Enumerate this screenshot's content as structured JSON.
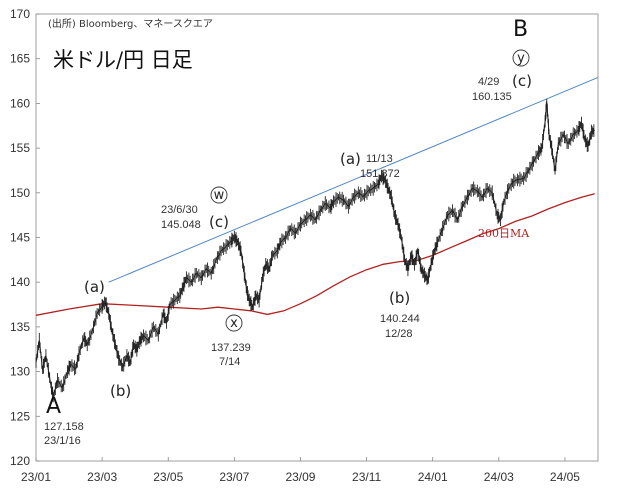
{
  "chart_data": {
    "type": "line",
    "source": "(出所) Bloomberg、マネースクエア",
    "title": "米ドル/円 日足",
    "ylim": [
      120,
      170
    ],
    "yticks": [
      120,
      125,
      130,
      135,
      140,
      145,
      150,
      155,
      160,
      165,
      170
    ],
    "xticks": [
      "23/01",
      "23/03",
      "23/05",
      "23/07",
      "23/09",
      "23/11",
      "24/01",
      "24/03",
      "24/05"
    ],
    "x_range_months": [
      0,
      17
    ],
    "series": [
      {
        "name": "",
        "color": "#222222",
        "points": [
          [
            0.0,
            131.0
          ],
          [
            0.1,
            133.5
          ],
          [
            0.2,
            130.2
          ],
          [
            0.3,
            131.8
          ],
          [
            0.45,
            128.5
          ],
          [
            0.52,
            127.158
          ],
          [
            0.65,
            129.0
          ],
          [
            0.8,
            128.2
          ],
          [
            0.95,
            130.0
          ],
          [
            1.05,
            130.8
          ],
          [
            1.2,
            130.3
          ],
          [
            1.3,
            132.0
          ],
          [
            1.45,
            133.8
          ],
          [
            1.55,
            133.0
          ],
          [
            1.7,
            134.5
          ],
          [
            1.85,
            136.5
          ],
          [
            2.0,
            137.3
          ],
          [
            2.1,
            137.8
          ],
          [
            2.2,
            136.5
          ],
          [
            2.3,
            134.5
          ],
          [
            2.4,
            133.0
          ],
          [
            2.5,
            131.5
          ],
          [
            2.62,
            130.5
          ],
          [
            2.75,
            131.8
          ],
          [
            2.85,
            131.0
          ],
          [
            2.95,
            133.0
          ],
          [
            3.05,
            132.5
          ],
          [
            3.15,
            133.5
          ],
          [
            3.25,
            134.0
          ],
          [
            3.4,
            133.5
          ],
          [
            3.55,
            135.0
          ],
          [
            3.7,
            134.2
          ],
          [
            3.85,
            136.5
          ],
          [
            3.95,
            135.5
          ],
          [
            4.05,
            137.5
          ],
          [
            4.2,
            138.0
          ],
          [
            4.35,
            138.5
          ],
          [
            4.45,
            139.5
          ],
          [
            4.55,
            140.5
          ],
          [
            4.7,
            140.0
          ],
          [
            4.85,
            141.0
          ],
          [
            5.0,
            140.5
          ],
          [
            5.15,
            141.5
          ],
          [
            5.3,
            141.0
          ],
          [
            5.45,
            142.5
          ],
          [
            5.6,
            143.5
          ],
          [
            5.75,
            144.0
          ],
          [
            5.9,
            144.6
          ],
          [
            6.0,
            145.048
          ],
          [
            6.1,
            144.5
          ],
          [
            6.2,
            143.5
          ],
          [
            6.3,
            141.0
          ],
          [
            6.38,
            139.0
          ],
          [
            6.45,
            138.0
          ],
          [
            6.55,
            137.239
          ],
          [
            6.65,
            138.5
          ],
          [
            6.75,
            138.0
          ],
          [
            6.85,
            140.5
          ],
          [
            6.95,
            142.0
          ],
          [
            7.05,
            141.5
          ],
          [
            7.15,
            143.0
          ],
          [
            7.3,
            143.5
          ],
          [
            7.4,
            144.5
          ],
          [
            7.55,
            145.0
          ],
          [
            7.7,
            146.0
          ],
          [
            7.85,
            145.5
          ],
          [
            8.0,
            146.5
          ],
          [
            8.15,
            147.0
          ],
          [
            8.3,
            147.5
          ],
          [
            8.45,
            147.0
          ],
          [
            8.6,
            148.0
          ],
          [
            8.75,
            148.8
          ],
          [
            8.9,
            148.3
          ],
          [
            9.0,
            149.0
          ],
          [
            9.15,
            149.5
          ],
          [
            9.3,
            149.2
          ],
          [
            9.45,
            148.5
          ],
          [
            9.6,
            149.5
          ],
          [
            9.75,
            150.0
          ],
          [
            9.9,
            149.6
          ],
          [
            10.05,
            150.2
          ],
          [
            10.2,
            150.5
          ],
          [
            10.35,
            151.0
          ],
          [
            10.45,
            151.872
          ],
          [
            10.55,
            151.5
          ],
          [
            10.65,
            150.5
          ],
          [
            10.75,
            149.5
          ],
          [
            10.85,
            147.5
          ],
          [
            10.95,
            146.5
          ],
          [
            11.05,
            145.0
          ],
          [
            11.15,
            142.5
          ],
          [
            11.25,
            141.5
          ],
          [
            11.35,
            143.0
          ],
          [
            11.45,
            142.0
          ],
          [
            11.55,
            143.5
          ],
          [
            11.65,
            141.5
          ],
          [
            11.75,
            140.8
          ],
          [
            11.85,
            140.244
          ],
          [
            11.95,
            142.0
          ],
          [
            12.05,
            143.5
          ],
          [
            12.15,
            144.5
          ],
          [
            12.3,
            146.0
          ],
          [
            12.45,
            147.5
          ],
          [
            12.6,
            148.0
          ],
          [
            12.75,
            147.0
          ],
          [
            12.9,
            148.5
          ],
          [
            13.05,
            149.5
          ],
          [
            13.2,
            150.5
          ],
          [
            13.35,
            150.2
          ],
          [
            13.5,
            149.5
          ],
          [
            13.65,
            150.5
          ],
          [
            13.8,
            150.0
          ],
          [
            13.95,
            147.5
          ],
          [
            14.05,
            147.0
          ],
          [
            14.15,
            149.0
          ],
          [
            14.3,
            150.5
          ],
          [
            14.45,
            151.3
          ],
          [
            14.6,
            151.5
          ],
          [
            14.75,
            151.6
          ],
          [
            14.9,
            152.5
          ],
          [
            15.05,
            153.5
          ],
          [
            15.2,
            154.5
          ],
          [
            15.3,
            155.0
          ],
          [
            15.4,
            158.0
          ],
          [
            15.45,
            160.135
          ],
          [
            15.52,
            156.5
          ],
          [
            15.6,
            155.0
          ],
          [
            15.7,
            152.5
          ],
          [
            15.8,
            155.5
          ],
          [
            15.95,
            156.5
          ],
          [
            16.1,
            155.5
          ],
          [
            16.25,
            156.5
          ],
          [
            16.4,
            157.0
          ],
          [
            16.5,
            157.8
          ],
          [
            16.6,
            156.0
          ],
          [
            16.7,
            155.2
          ],
          [
            16.8,
            156.8
          ],
          [
            16.9,
            157.0
          ]
        ]
      },
      {
        "name": "200日MA",
        "color": "#b22222",
        "points": [
          [
            0.0,
            136.3
          ],
          [
            1.0,
            137.0
          ],
          [
            2.0,
            137.6
          ],
          [
            3.0,
            137.4
          ],
          [
            4.0,
            137.2
          ],
          [
            5.0,
            137.0
          ],
          [
            5.5,
            137.2
          ],
          [
            6.0,
            137.0
          ],
          [
            6.5,
            136.8
          ],
          [
            7.0,
            136.4
          ],
          [
            7.5,
            136.8
          ],
          [
            8.0,
            137.6
          ],
          [
            8.5,
            138.5
          ],
          [
            9.0,
            139.6
          ],
          [
            9.5,
            140.6
          ],
          [
            10.0,
            141.4
          ],
          [
            10.5,
            142.0
          ],
          [
            11.0,
            142.3
          ],
          [
            11.5,
            142.4
          ],
          [
            12.0,
            143.0
          ],
          [
            12.5,
            143.8
          ],
          [
            13.0,
            144.6
          ],
          [
            13.5,
            145.4
          ],
          [
            14.0,
            146.0
          ],
          [
            14.5,
            146.8
          ],
          [
            15.0,
            147.4
          ],
          [
            15.5,
            148.2
          ],
          [
            16.0,
            148.9
          ],
          [
            16.5,
            149.5
          ],
          [
            16.9,
            149.9
          ]
        ]
      }
    ],
    "trendline": {
      "color": "#4f86c6",
      "from": [
        2.2,
        140.0
      ],
      "to": [
        17.0,
        162.9
      ]
    },
    "annotations": {
      "A": {
        "wave": "A",
        "date": "23/1/16",
        "value": "127.158"
      },
      "a1": {
        "wave": "(a)"
      },
      "b1": {
        "wave": "(b)"
      },
      "c1": {
        "wave": "(c)",
        "date": "23/6/30",
        "value": "145.048",
        "circle": "w"
      },
      "x": {
        "circle": "x",
        "value": "137.239",
        "date": "7/14"
      },
      "a2": {
        "wave": "(a)",
        "date": "11/13",
        "value": "151.872"
      },
      "b2": {
        "wave": "(b)",
        "value": "140.244",
        "date": "12/28"
      },
      "B": {
        "wave": "B",
        "circle": "y",
        "sub": "(c)",
        "date": "4/29",
        "value": "160.135"
      }
    }
  }
}
